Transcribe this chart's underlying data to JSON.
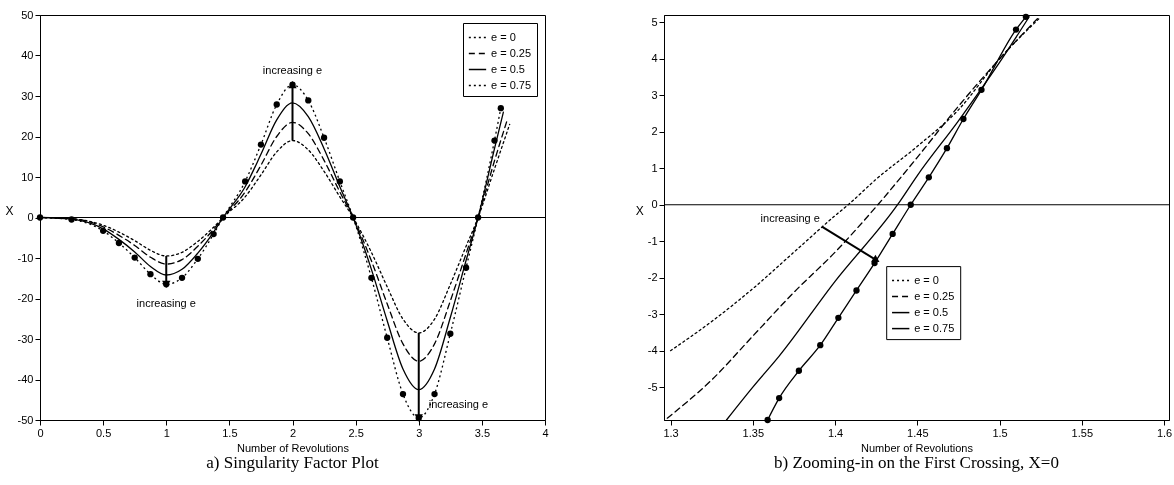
{
  "chart_data": [
    {
      "type": "line",
      "title": "a) Singularity Factor Plot",
      "xlabel": "Number of Revolutions",
      "ylabel": "X",
      "xlim": [
        0,
        4
      ],
      "xticks": [
        0,
        0.5,
        1,
        1.5,
        2,
        2.5,
        3,
        3.5,
        4
      ],
      "ylim": [
        -50,
        50
      ],
      "yticks": [
        -50,
        -40,
        -30,
        -20,
        -10,
        0,
        10,
        20,
        30,
        40,
        50
      ],
      "legend": "top right",
      "ref_lines": [
        {
          "axis": "y",
          "value": 0
        }
      ],
      "annotations": [
        {
          "text": "increasing  e",
          "x": 1,
          "y": -9.5
        },
        {
          "text": "increasing  e",
          "x": 2,
          "y": 19
        },
        {
          "text": "increasing  e",
          "x": 3,
          "y": -28.5
        }
      ],
      "series": [
        {
          "name": "e = 0",
          "color": "#000000",
          "line_style": "dotted",
          "x": [
            0,
            0.25,
            0.5,
            0.625,
            0.75,
            0.875,
            1,
            1.125,
            1.25,
            1.375,
            1.45,
            1.625,
            1.75,
            1.875,
            2,
            2.125,
            2.25,
            2.375,
            2.48,
            2.625,
            2.75,
            2.875,
            3,
            3.125,
            3.25,
            3.375,
            3.47,
            3.6,
            3.72
          ],
          "values": [
            0,
            -0.3,
            -1.9,
            -3.6,
            -5.7,
            -8.1,
            -9.5,
            -8.6,
            -5.9,
            -2.4,
            0,
            5.1,
            10.5,
            16.2,
            19,
            16.7,
            11.4,
            5.1,
            0,
            -8.6,
            -17.1,
            -25.1,
            -28.5,
            -25.1,
            -16.5,
            -7.1,
            0,
            12,
            23
          ]
        },
        {
          "name": "e = 0.25",
          "color": "#000000",
          "line_style": "dashed",
          "x": [
            0,
            0.25,
            0.5,
            0.625,
            0.75,
            0.875,
            1,
            1.125,
            1.25,
            1.375,
            1.45,
            1.625,
            1.75,
            1.875,
            2,
            2.125,
            2.25,
            2.375,
            2.48,
            2.625,
            2.75,
            2.875,
            3,
            3.125,
            3.25,
            3.375,
            3.47,
            3.6,
            3.7
          ],
          "values": [
            0,
            -0.3,
            -2.3,
            -4.4,
            -6.9,
            -9.8,
            -11.5,
            -10.4,
            -7.1,
            -2.9,
            0,
            6.3,
            12.9,
            20,
            23.5,
            20.7,
            14.1,
            6.3,
            0,
            -10.7,
            -21.3,
            -31.2,
            -35.5,
            -31.2,
            -20.6,
            -8.9,
            0,
            14,
            24
          ]
        },
        {
          "name": "e = 0.5",
          "color": "#000000",
          "line_style": "solid",
          "x": [
            0,
            0.25,
            0.5,
            0.625,
            0.75,
            0.875,
            1,
            1.125,
            1.25,
            1.375,
            1.45,
            1.625,
            1.75,
            1.875,
            2,
            2.125,
            2.25,
            2.375,
            2.48,
            2.625,
            2.75,
            2.875,
            3,
            3.125,
            3.25,
            3.375,
            3.47,
            3.6,
            3.67
          ],
          "values": [
            0,
            -0.4,
            -2.8,
            -5.4,
            -8.5,
            -12.1,
            -14.2,
            -12.8,
            -8.8,
            -3.6,
            0,
            7.6,
            15.6,
            24.1,
            28.3,
            24.9,
            17,
            7.6,
            0,
            -12.8,
            -25.5,
            -37.4,
            -42.5,
            -37.4,
            -24.7,
            -10.6,
            0,
            17,
            26
          ]
        },
        {
          "name": "e = 0.75",
          "color": "#000000",
          "line_style": "dotted",
          "marker": "circle",
          "x": [
            0,
            0.25,
            0.5,
            0.625,
            0.75,
            0.875,
            1,
            1.125,
            1.25,
            1.375,
            1.45,
            1.625,
            1.75,
            1.875,
            2,
            2.125,
            2.25,
            2.375,
            2.48,
            2.625,
            2.75,
            2.875,
            3,
            3.125,
            3.25,
            3.375,
            3.47,
            3.6,
            3.65
          ],
          "values": [
            0,
            -0.5,
            -3.3,
            -6.3,
            -9.9,
            -14,
            -16.5,
            -14.9,
            -10.2,
            -4.1,
            0,
            8.9,
            18,
            27.9,
            32.8,
            28.9,
            19.7,
            8.9,
            0,
            -14.9,
            -29.7,
            -43.6,
            -49.5,
            -43.6,
            -28.7,
            -12.4,
            0,
            19,
            27
          ]
        }
      ]
    },
    {
      "type": "line",
      "title": "b) Zooming-in on the First Crossing, X=0",
      "xlabel": "Number of Revolutions",
      "ylabel": "X",
      "xlim": [
        1.296,
        1.603
      ],
      "xticks": [
        1.3,
        1.35,
        1.4,
        1.45,
        1.5,
        1.55,
        1.6
      ],
      "ylim": [
        -5.9,
        5.2
      ],
      "yticks": [
        -5,
        -4,
        -3,
        -2,
        -1,
        0,
        1,
        2,
        3,
        4,
        5
      ],
      "legend": "center",
      "ref_lines": [
        {
          "axis": "y",
          "value": 0
        }
      ],
      "annotations": [
        {
          "text": "increasing  e",
          "x": 1.392,
          "y": -0.6
        }
      ],
      "series": [
        {
          "name": "e = 0",
          "color": "#000000",
          "line_style": "dotted",
          "x": [
            1.3,
            1.325,
            1.35,
            1.375,
            1.4,
            1.408,
            1.425,
            1.45,
            1.475,
            1.5,
            1.524
          ],
          "values": [
            -4,
            -3.2,
            -2.3,
            -1.3,
            -0.3,
            0,
            0.7,
            1.6,
            2.6,
            4,
            5.1
          ]
        },
        {
          "name": "e = 0.25",
          "color": "#000000",
          "line_style": "dashed",
          "x": [
            1.298,
            1.325,
            1.35,
            1.375,
            1.4,
            1.426,
            1.45,
            1.475,
            1.5,
            1.523
          ],
          "values": [
            -5.85,
            -4.8,
            -3.6,
            -2.4,
            -1.3,
            0,
            1.3,
            2.7,
            4,
            5.1
          ]
        },
        {
          "name": "e = 0.5",
          "color": "#000000",
          "line_style": "solid",
          "x": [
            1.334,
            1.35,
            1.366,
            1.4,
            1.438,
            1.45,
            1.475,
            1.5,
            1.518
          ],
          "values": [
            -5.9,
            -5,
            -4.15,
            -2.1,
            0,
            0.8,
            2.3,
            3.9,
            5.15
          ]
        },
        {
          "name": "e = 0.75",
          "color": "#000000",
          "line_style": "solid",
          "marker": "circle",
          "x": [
            1.359,
            1.366,
            1.378,
            1.391,
            1.402,
            1.413,
            1.424,
            1.435,
            1.446,
            1.457,
            1.468,
            1.478,
            1.489,
            1.51,
            1.516
          ],
          "values": [
            -5.9,
            -5.3,
            -4.55,
            -3.85,
            -3.1,
            -2.35,
            -1.6,
            -0.8,
            0,
            0.75,
            1.55,
            2.35,
            3.15,
            4.8,
            5.15
          ]
        }
      ]
    }
  ]
}
